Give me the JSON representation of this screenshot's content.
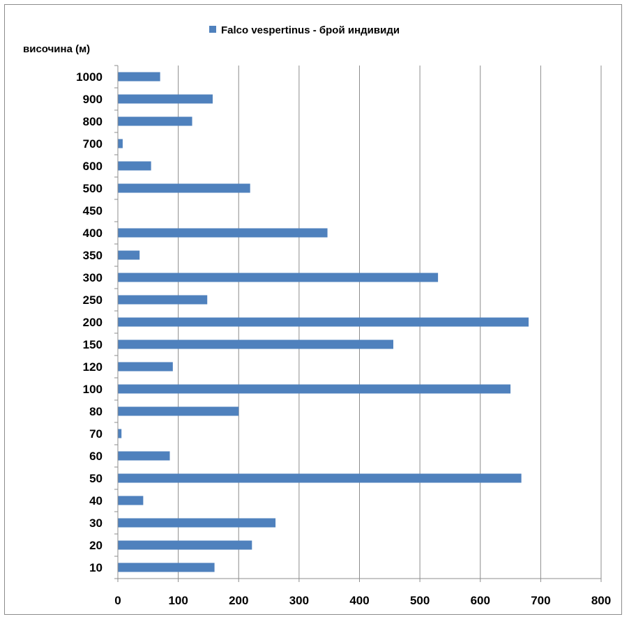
{
  "chart_data": {
    "type": "bar",
    "orientation": "horizontal",
    "ylabel": "височина (м)",
    "xlabel": "",
    "xlim": [
      0,
      800
    ],
    "xticks": [
      0,
      100,
      200,
      300,
      400,
      500,
      600,
      700,
      800
    ],
    "grid": true,
    "legend_position": "top",
    "categories": [
      "10",
      "20",
      "30",
      "40",
      "50",
      "60",
      "70",
      "80",
      "100",
      "120",
      "150",
      "200",
      "250",
      "300",
      "350",
      "400",
      "450",
      "500",
      "600",
      "700",
      "800",
      "900",
      "1000"
    ],
    "series": [
      {
        "name": "Falco vespertinus - брой индивиди",
        "color": "#4f81bd",
        "values": [
          160,
          222,
          261,
          42,
          668,
          86,
          6,
          200,
          650,
          91,
          456,
          680,
          148,
          530,
          36,
          347,
          0,
          219,
          55,
          8,
          123,
          157,
          70
        ]
      }
    ]
  }
}
